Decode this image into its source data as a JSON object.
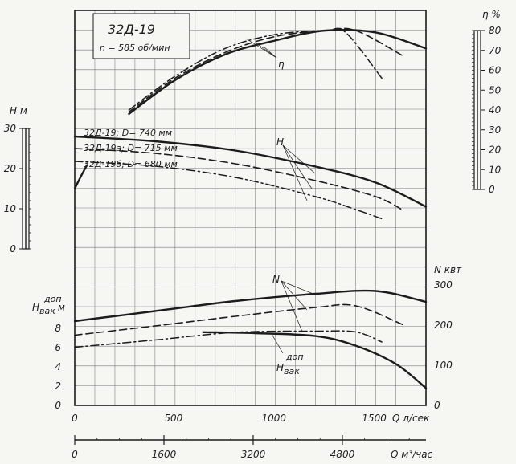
{
  "chart_data": {
    "type": "line",
    "title": "32Д-19",
    "subtitle": "n = 585 об/мин",
    "grid": true,
    "x_axis": {
      "label": "Q л/сек",
      "range": [
        0,
        1750
      ],
      "ticks": [
        "0",
        "500",
        "1000",
        "1500"
      ]
    },
    "x2_axis": {
      "label": "Q м³/час",
      "range": [
        0,
        6300
      ],
      "ticks": [
        "0",
        "1600",
        "3200",
        "4800"
      ]
    },
    "y_axes": {
      "H": {
        "label": "H м",
        "range": [
          0,
          30
        ],
        "ticks": [
          "0",
          "10",
          "20",
          "30"
        ]
      },
      "eta": {
        "label": "η %",
        "range": [
          0,
          80
        ],
        "ticks": [
          "0",
          "10",
          "20",
          "30",
          "40",
          "50",
          "60",
          "70",
          "80"
        ]
      },
      "N": {
        "label": "N квт",
        "range": [
          0,
          300
        ],
        "ticks": [
          "0",
          "100",
          "200",
          "300"
        ]
      },
      "Hvac": {
        "label": "Hвак доп м",
        "label_main": "H",
        "label_sup": "доп",
        "label_sub": "вак",
        "label_unit": "м",
        "range": [
          0,
          10
        ],
        "ticks": [
          "0",
          "2",
          "4",
          "6",
          "8"
        ]
      }
    },
    "curve_labels": {
      "eta": "η",
      "H": "H",
      "N": "N",
      "Hvac_main": "H",
      "Hvac_sup": "доп",
      "Hvac_sub": "вак"
    },
    "impeller_labels": [
      "32Д-19; D= 740 мм",
      "32Д-19а; D= 715 мм",
      "32Д-19б; D= 680 мм"
    ],
    "series": [
      {
        "group": "eta",
        "style": "solid",
        "x": [
          270,
          500,
          750,
          1000,
          1250,
          1500,
          1750
        ],
        "y": [
          38,
          55,
          68,
          75,
          80,
          79,
          71
        ]
      },
      {
        "group": "eta",
        "style": "dashed",
        "x": [
          270,
          500,
          750,
          1000,
          1250,
          1400,
          1640
        ],
        "y": [
          39,
          56,
          69,
          77,
          80,
          80,
          67
        ]
      },
      {
        "group": "eta",
        "style": "dashdot",
        "x": [
          270,
          500,
          750,
          1000,
          1250,
          1350,
          1530
        ],
        "y": [
          40,
          57,
          71,
          78,
          80,
          79,
          56
        ]
      },
      {
        "group": "H",
        "style": "solid",
        "x": [
          0,
          400,
          800,
          1200,
          1500,
          1750
        ],
        "y": [
          28,
          26.8,
          24.5,
          20.5,
          16.5,
          10.5
        ]
      },
      {
        "group": "H",
        "style": "dashed",
        "x": [
          0,
          400,
          800,
          1200,
          1500,
          1640
        ],
        "y": [
          25,
          23.8,
          21.2,
          17,
          13,
          9.5
        ]
      },
      {
        "group": "H",
        "style": "dashdot",
        "x": [
          0,
          400,
          800,
          1200,
          1400,
          1530
        ],
        "y": [
          21.8,
          20.6,
          17.8,
          13,
          9.8,
          7.5
        ]
      },
      {
        "group": "H",
        "style": "solid",
        "x": [
          0,
          30,
          60
        ],
        "y": [
          15,
          18,
          20.8
        ]
      },
      {
        "group": "N",
        "style": "solid",
        "x": [
          0,
          400,
          800,
          1200,
          1500,
          1750
        ],
        "y": [
          210,
          235,
          260,
          278,
          285,
          258
        ]
      },
      {
        "group": "N",
        "style": "dashed",
        "x": [
          0,
          400,
          800,
          1200,
          1400,
          1640
        ],
        "y": [
          175,
          198,
          222,
          244,
          248,
          200
        ]
      },
      {
        "group": "N",
        "style": "dashdot",
        "x": [
          0,
          400,
          800,
          1200,
          1400,
          1530
        ],
        "y": [
          145,
          163,
          182,
          185,
          183,
          158
        ]
      },
      {
        "group": "Hvac",
        "style": "solid",
        "x": [
          640,
          900,
          1200,
          1400,
          1600,
          1750
        ],
        "y": [
          7.6,
          7.5,
          7.2,
          6.2,
          4.3,
          1.8
        ]
      }
    ]
  }
}
